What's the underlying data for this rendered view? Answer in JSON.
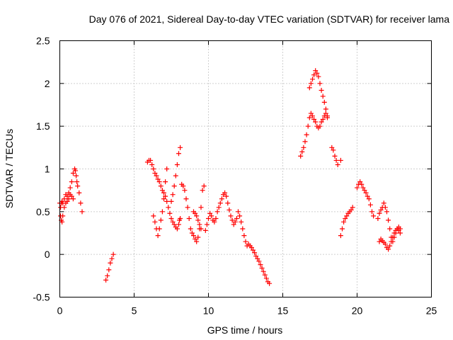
{
  "chart_data": {
    "type": "scatter",
    "title": "Day 076 of 2021, Sidereal Day-to-day VTEC variation (SDTVAR) for receiver lama",
    "xlabel": "GPS time / hours",
    "ylabel": "SDTVAR / TECUs",
    "xlim": [
      0,
      25
    ],
    "ylim": [
      -0.5,
      2.5
    ],
    "xticks": [
      "0",
      "5",
      "10",
      "15",
      "20",
      "25"
    ],
    "yticks": [
      "-0.5",
      "0",
      "0.5",
      "1",
      "1.5",
      "2",
      "2.5"
    ],
    "grid": true,
    "marker": "+",
    "color": "#ff0000",
    "series": [
      {
        "name": "SDTVAR",
        "x": [
          0.0,
          0.05,
          0.1,
          0.15,
          0.2,
          0.3,
          0.4,
          0.5,
          0.6,
          0.7,
          0.8,
          0.9,
          1.0,
          1.05,
          1.1,
          1.15,
          1.2,
          1.3,
          1.4,
          1.5,
          0.05,
          0.1,
          0.15,
          0.2,
          0.3,
          0.4,
          0.5,
          0.6,
          0.7,
          0.8,
          0.9,
          3.1,
          3.2,
          3.3,
          3.4,
          3.5,
          3.6,
          5.9,
          6.0,
          6.1,
          6.2,
          6.3,
          6.4,
          6.5,
          6.6,
          6.7,
          6.8,
          6.9,
          7.0,
          7.1,
          7.2,
          7.3,
          7.4,
          7.5,
          7.6,
          7.7,
          7.8,
          7.9,
          8.0,
          8.05,
          8.1,
          6.3,
          6.4,
          6.5,
          6.6,
          6.7,
          6.8,
          6.9,
          7.0,
          7.1,
          7.2,
          7.5,
          7.6,
          7.7,
          7.8,
          7.9,
          8.0,
          8.1,
          8.2,
          8.3,
          8.4,
          8.5,
          8.6,
          8.7,
          8.8,
          8.9,
          9.0,
          9.1,
          9.2,
          9.3,
          9.4,
          9.5,
          9.6,
          9.7,
          9.0,
          9.1,
          9.2,
          9.3,
          9.4,
          9.5,
          9.8,
          9.9,
          10.0,
          10.1,
          10.2,
          10.3,
          10.4,
          10.5,
          10.6,
          10.7,
          10.8,
          10.9,
          11.0,
          11.1,
          11.2,
          11.3,
          11.4,
          11.5,
          11.6,
          11.7,
          11.8,
          11.9,
          12.0,
          12.1,
          12.2,
          12.3,
          12.4,
          12.5,
          12.6,
          12.7,
          12.8,
          12.9,
          13.0,
          13.1,
          13.2,
          13.3,
          13.4,
          13.5,
          13.6,
          13.7,
          13.8,
          13.9,
          14.0,
          14.1,
          16.2,
          16.3,
          16.4,
          16.5,
          16.6,
          16.7,
          16.8,
          16.9,
          17.0,
          17.1,
          17.2,
          17.3,
          17.4,
          17.5,
          17.6,
          17.7,
          17.8,
          17.9,
          18.0,
          16.8,
          16.9,
          17.0,
          17.1,
          17.2,
          17.3,
          17.4,
          17.5,
          17.6,
          17.7,
          17.8,
          17.9,
          18.0,
          18.3,
          18.4,
          18.5,
          18.6,
          18.7,
          18.9,
          18.9,
          19.0,
          19.1,
          19.2,
          19.3,
          19.4,
          19.5,
          19.6,
          19.7,
          20.0,
          20.1,
          20.2,
          20.3,
          20.4,
          20.5,
          20.6,
          20.7,
          20.8,
          20.9,
          21.0,
          21.1,
          21.4,
          21.5,
          21.6,
          21.7,
          21.8,
          21.9,
          22.0,
          22.1,
          22.2,
          22.3,
          22.4,
          22.5,
          22.6,
          22.7,
          22.8,
          22.9,
          21.5,
          21.6,
          21.7,
          21.8,
          21.9,
          22.0,
          22.1,
          22.2,
          22.3,
          22.4,
          22.5,
          22.6,
          22.7,
          22.8,
          22.9
        ],
        "y": [
          0.6,
          0.55,
          0.6,
          0.62,
          0.6,
          0.65,
          0.7,
          0.68,
          0.72,
          0.78,
          0.85,
          0.95,
          1.0,
          0.98,
          0.92,
          0.85,
          0.8,
          0.72,
          0.6,
          0.5,
          0.45,
          0.4,
          0.38,
          0.45,
          0.55,
          0.6,
          0.62,
          0.65,
          0.7,
          0.68,
          0.65,
          -0.3,
          -0.25,
          -0.18,
          -0.1,
          -0.05,
          0.0,
          1.08,
          1.1,
          1.1,
          1.05,
          1.0,
          0.95,
          0.92,
          0.88,
          0.85,
          0.8,
          0.75,
          0.72,
          0.68,
          0.62,
          0.55,
          0.48,
          0.42,
          0.38,
          0.35,
          0.32,
          0.3,
          0.35,
          0.4,
          0.42,
          0.45,
          0.38,
          0.3,
          0.22,
          0.3,
          0.4,
          0.5,
          0.65,
          0.85,
          1.0,
          0.62,
          0.7,
          0.8,
          0.92,
          1.05,
          1.18,
          1.25,
          0.82,
          0.8,
          0.75,
          0.65,
          0.55,
          0.42,
          0.3,
          0.25,
          0.22,
          0.18,
          0.15,
          0.2,
          0.3,
          0.55,
          0.75,
          0.8,
          0.5,
          0.48,
          0.45,
          0.4,
          0.35,
          0.3,
          0.28,
          0.35,
          0.42,
          0.48,
          0.45,
          0.4,
          0.38,
          0.42,
          0.5,
          0.55,
          0.6,
          0.65,
          0.7,
          0.72,
          0.68,
          0.6,
          0.52,
          0.45,
          0.4,
          0.35,
          0.38,
          0.42,
          0.5,
          0.45,
          0.38,
          0.3,
          0.22,
          0.15,
          0.1,
          0.12,
          0.1,
          0.08,
          0.05,
          0.02,
          -0.02,
          -0.05,
          -0.08,
          -0.12,
          -0.16,
          -0.2,
          -0.24,
          -0.28,
          -0.32,
          -0.34,
          1.15,
          1.2,
          1.25,
          1.32,
          1.4,
          1.5,
          1.6,
          1.65,
          1.62,
          1.58,
          1.55,
          1.5,
          1.48,
          1.5,
          1.55,
          1.58,
          1.62,
          1.65,
          1.6,
          1.95,
          2.0,
          2.05,
          2.1,
          2.15,
          2.12,
          2.08,
          2.0,
          1.92,
          1.85,
          1.78,
          1.7,
          1.62,
          1.25,
          1.22,
          1.15,
          1.1,
          1.05,
          1.1,
          0.22,
          0.3,
          0.38,
          0.42,
          0.45,
          0.48,
          0.5,
          0.52,
          0.55,
          0.78,
          0.82,
          0.85,
          0.82,
          0.78,
          0.75,
          0.72,
          0.68,
          0.65,
          0.58,
          0.5,
          0.45,
          0.42,
          0.48,
          0.52,
          0.55,
          0.6,
          0.55,
          0.5,
          0.4,
          0.3,
          0.2,
          0.15,
          0.2,
          0.25,
          0.3,
          0.32,
          0.3,
          0.15,
          0.18,
          0.16,
          0.14,
          0.12,
          0.08,
          0.06,
          0.1,
          0.15,
          0.2,
          0.25,
          0.28,
          0.3,
          0.28,
          0.25
        ]
      }
    ]
  }
}
